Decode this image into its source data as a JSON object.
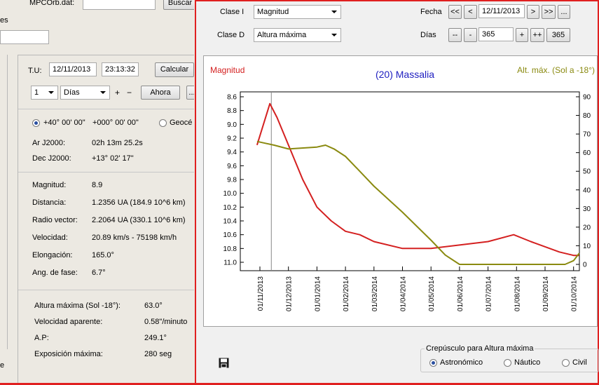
{
  "left": {
    "file_label": "MPCOrb.dat:",
    "file_value": "",
    "search_button": "Buscar",
    "partial_label": "es",
    "tu_label": "T.U:",
    "date_value": "12/11/2013",
    "time_value": "23:13:32",
    "calc_button": "Calcular",
    "step_value": "1",
    "unit_value": "Días",
    "plus": "+",
    "minus": "−",
    "now_button": "Ahora",
    "more_button": "...",
    "location_lat": "+40° 00' 00\"",
    "location_lon": "+000° 00' 00\"",
    "geocentric_label": "Geocé",
    "ra_label": "Ar J2000:",
    "ra_value": "02h 13m 25.2s",
    "dec_label": "Dec J2000:",
    "dec_value": "+13° 02' 17\"",
    "props": [
      {
        "label": "Magnitud:",
        "value": "8.9"
      },
      {
        "label": "Distancia:",
        "value": "1.2356 UA  (184.9  10^6 km)"
      },
      {
        "label": "Radio vector:",
        "value": "2.2064 UA  (330.1  10^6 km)"
      },
      {
        "label": "Velocidad:",
        "value": "20.89  km/s  -  75198  km/h"
      },
      {
        "label": "Elongación:",
        "value": "165.0°"
      },
      {
        "label": "Ang. de fase:",
        "value": "6.7°"
      }
    ],
    "props2": [
      {
        "label": "Altura máxima (Sol -18°):",
        "value": "63.0°"
      },
      {
        "label": "Velocidad aparente:",
        "value": "0.58\"/minuto"
      },
      {
        "label": "A.P:",
        "value": "249.1°"
      },
      {
        "label": "Exposición máxima:",
        "value": "280 seg"
      }
    ],
    "bottom_mark": "e"
  },
  "right": {
    "clase_i_label": "Clase I",
    "clase_i_value": "Magnitud",
    "clase_d_label": "Clase D",
    "clase_d_value": "Altura máxima",
    "fecha_label": "Fecha",
    "fecha_value": "12/11/2013",
    "btn_first": "<<",
    "btn_prev": "<",
    "btn_next": ">",
    "btn_last": ">>",
    "btn_dots": "...",
    "dias_label": "Días",
    "btn_mm": "--",
    "btn_m": "-",
    "dias_value": "365",
    "btn_p": "+",
    "btn_pp": "++",
    "btn_365": "365",
    "twilight_title": "Crepúsculo para Altura máxima",
    "twilight_options": [
      "Astronómico",
      "Náutico",
      "Civil"
    ],
    "twilight_selected": 0,
    "colors": {
      "magnitude": "#d42020",
      "altitude": "#8a8a10",
      "title": "#2020c0"
    }
  },
  "chart_data": {
    "type": "line",
    "title": "(20) Massalia",
    "left_axis_label": "Magnitud",
    "right_axis_label": "Alt. máx. (Sol a -18°)",
    "left_ticks": [
      "8.6",
      "8.8",
      "9.0",
      "9.2",
      "9.4",
      "9.6",
      "9.8",
      "10.0",
      "10.2",
      "10.4",
      "10.6",
      "10.8",
      "11.0"
    ],
    "left_range": [
      8.6,
      11.0
    ],
    "left_inverted": true,
    "right_ticks": [
      "90",
      "80",
      "70",
      "60",
      "50",
      "40",
      "30",
      "20",
      "10",
      "0"
    ],
    "right_range": [
      0,
      90
    ],
    "x_labels": [
      "01/11/2013",
      "01/12/2013",
      "01/01/2014",
      "01/02/2014",
      "01/03/2014",
      "01/04/2014",
      "01/05/2014",
      "01/06/2014",
      "01/07/2014",
      "01/08/2014",
      "01/09/2014",
      "01/10/2014"
    ],
    "marker_x": 0.4,
    "series": [
      {
        "name": "Magnitud",
        "axis": "left",
        "x": [
          -0.1,
          0.35,
          0.6,
          1.0,
          1.5,
          2.0,
          2.5,
          3.0,
          3.5,
          4.0,
          5.0,
          6.0,
          7.0,
          8.0,
          8.9,
          9.5,
          10.5,
          11.0,
          11.2
        ],
        "y": [
          9.3,
          8.7,
          8.9,
          9.3,
          9.8,
          10.2,
          10.4,
          10.55,
          10.6,
          10.7,
          10.8,
          10.8,
          10.75,
          10.7,
          10.6,
          10.7,
          10.85,
          10.9,
          10.9
        ]
      },
      {
        "name": "Alt. máx.",
        "axis": "right",
        "x": [
          -0.1,
          0.5,
          1.0,
          2.0,
          2.3,
          2.6,
          3.0,
          3.5,
          4.0,
          5.0,
          6.0,
          6.5,
          7.0,
          8.0,
          9.0,
          10.0,
          10.7,
          11.0,
          11.2
        ],
        "y": [
          66,
          64,
          62,
          63,
          64,
          62,
          58,
          50,
          42,
          28,
          13,
          5,
          0,
          0,
          0,
          0,
          0,
          2,
          6
        ]
      }
    ]
  }
}
